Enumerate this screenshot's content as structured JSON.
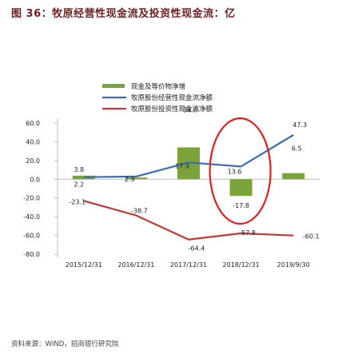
{
  "figure": {
    "title": "图 36：牧原经营性现金流及投资性现金流：亿",
    "source": "资料来源：WIND，招商银行研究院"
  },
  "chart_data": {
    "type": "bar+line",
    "categories": [
      "2015/12/31",
      "2016/12/31",
      "2017/12/31",
      "2018/12/31",
      "2019/9/30"
    ],
    "series": [
      {
        "name": "现金及等价物净增",
        "type": "bar",
        "color": "#7aa33a",
        "values": [
          3.8,
          1.8,
          34.0,
          -17.8,
          6.5
        ],
        "labels": [
          "3.8",
          "",
          "34.0",
          "-17.8",
          "6.5"
        ]
      },
      {
        "name": "牧原股份经营性现金流净额",
        "type": "line",
        "color": "#3d6cb5",
        "values": [
          2.2,
          2.9,
          17.9,
          13.6,
          47.3
        ],
        "labels": [
          "2.2",
          "2.9",
          "17.9",
          "13.6",
          "47.3"
        ]
      },
      {
        "name": "牧原股份投资性现金流净额",
        "type": "line",
        "color": "#c0393b",
        "values": [
          -23.1,
          -38.7,
          -64.4,
          -57.8,
          -60.1
        ],
        "labels": [
          "-23.1",
          "-38.7",
          "-64.4",
          "-57.8",
          "-60.1"
        ]
      }
    ],
    "ylim": [
      -80,
      60
    ],
    "yticks": [
      "60.0",
      "40.0",
      "20.0",
      "0.0",
      "-20.0",
      "-40.0",
      "-60.0",
      "-80.0"
    ],
    "ytick_values": [
      60,
      40,
      20,
      0,
      -20,
      -40,
      -60,
      -80
    ],
    "legend_position": "top-center",
    "annotation": {
      "type": "ellipse-highlight",
      "category": "2018/12/31",
      "color": "#e0201b"
    },
    "grid": false
  }
}
